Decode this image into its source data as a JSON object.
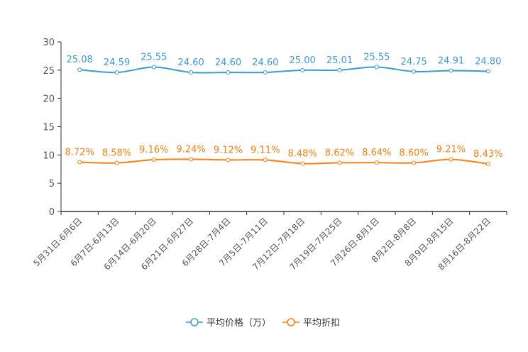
{
  "chart_data": {
    "type": "line",
    "categories": [
      "5月31日-6月6日",
      "6月7日-6月13日",
      "6月14日-6月20日",
      "6月21日-6月27日",
      "6月28日-7月4日",
      "7月5日-7月11日",
      "7月12日-7月18日",
      "7月19日-7月25日",
      "7月26日-8月1日",
      "8月2日-8月8日",
      "8月9日-8月15日",
      "8月16日-8月22日"
    ],
    "series": [
      {
        "name": "平均价格（万）",
        "color": "#3a9bd5",
        "values": [
          25.08,
          24.59,
          25.55,
          24.6,
          24.6,
          24.6,
          25.0,
          25.01,
          25.55,
          24.75,
          24.91,
          24.8
        ],
        "labels": [
          "25.08",
          "24.59",
          "25.55",
          "24.60",
          "24.60",
          "24.60",
          "25.00",
          "25.01",
          "25.55",
          "24.75",
          "24.91",
          "24.80"
        ]
      },
      {
        "name": "平均折扣",
        "color": "#ff7f0e",
        "values": [
          8.72,
          8.58,
          9.16,
          9.24,
          9.12,
          9.11,
          8.48,
          8.62,
          8.64,
          8.6,
          9.21,
          8.43
        ],
        "labels": [
          "8.72%",
          "8.58%",
          "9.16%",
          "9.24%",
          "9.12%",
          "9.11%",
          "8.48%",
          "8.62%",
          "8.64%",
          "8.60%",
          "9.21%",
          "8.43%"
        ]
      }
    ],
    "yticks": [
      "0",
      "5",
      "10",
      "15",
      "20",
      "25",
      "30"
    ],
    "ylim": [
      0,
      30
    ],
    "legend_position": "bottom",
    "grid": false
  }
}
